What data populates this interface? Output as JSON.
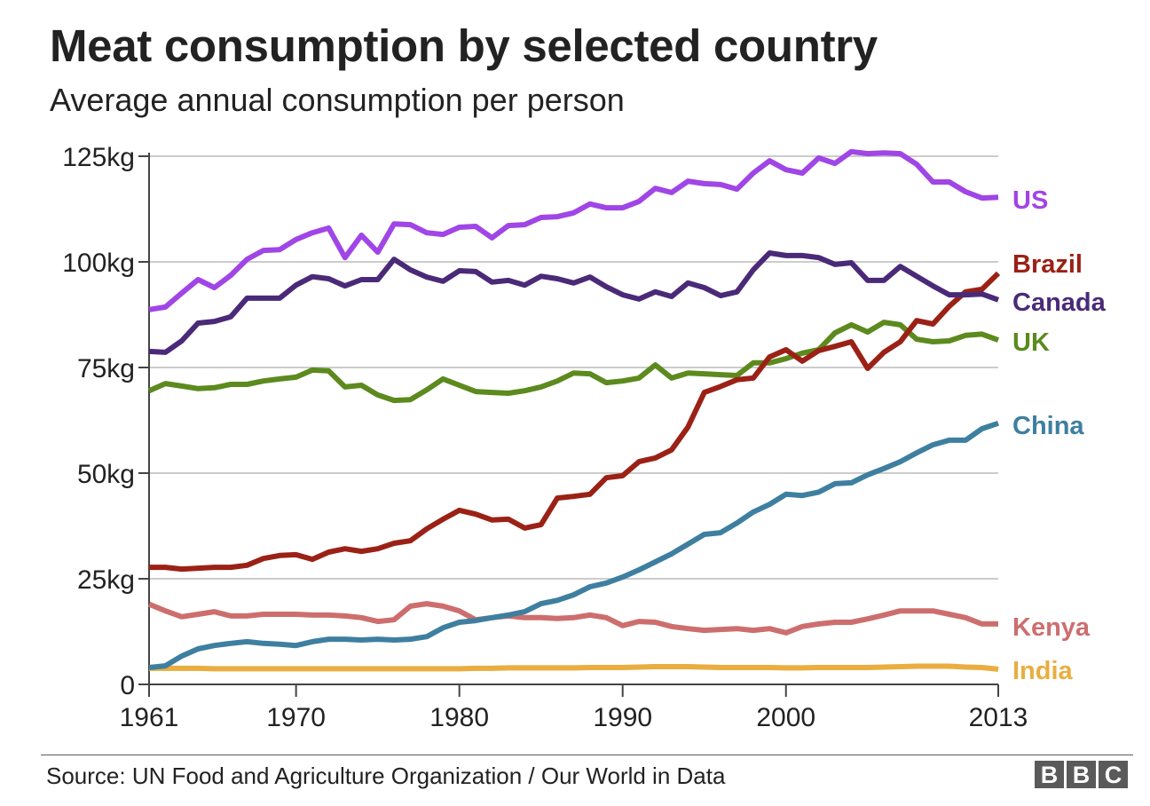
{
  "header": {
    "title": "Meat consumption by selected country",
    "subtitle": "Average annual consumption per person"
  },
  "footer": {
    "source": "Source: UN Food and Agriculture Organization / Our World in Data",
    "logo_letters": [
      "B",
      "B",
      "C"
    ]
  },
  "chart_data": {
    "type": "line",
    "title": "Meat consumption by selected country",
    "subtitle": "Average annual consumption per person",
    "xlabel": "",
    "ylabel": "",
    "xlim": [
      1961,
      2013
    ],
    "ylim": [
      0,
      125
    ],
    "x_ticks": [
      1961,
      1970,
      1980,
      1990,
      2000,
      2013
    ],
    "y_ticks": [
      0,
      25,
      50,
      75,
      100,
      125
    ],
    "y_tick_labels": [
      "0",
      "25kg",
      "50kg",
      "75kg",
      "100kg",
      "125kg"
    ],
    "grid": "horizontal",
    "legend": "direct labels at right end of lines",
    "x": [
      1961,
      1962,
      1963,
      1964,
      1965,
      1966,
      1967,
      1968,
      1969,
      1970,
      1971,
      1972,
      1973,
      1974,
      1975,
      1976,
      1977,
      1978,
      1979,
      1980,
      1981,
      1982,
      1983,
      1984,
      1985,
      1986,
      1987,
      1988,
      1989,
      1990,
      1991,
      1992,
      1993,
      1994,
      1995,
      1996,
      1997,
      1998,
      1999,
      2000,
      2001,
      2002,
      2003,
      2004,
      2005,
      2006,
      2007,
      2008,
      2009,
      2010,
      2011,
      2012,
      2013
    ],
    "series": [
      {
        "name": "US",
        "color": "#a045e6",
        "values": [
          88.7,
          89.3,
          92.6,
          95.8,
          93.9,
          96.8,
          100.6,
          102.7,
          102.9,
          105.3,
          106.9,
          108.0,
          101.0,
          106.3,
          102.3,
          109.0,
          108.8,
          106.9,
          106.5,
          108.2,
          108.4,
          105.7,
          108.6,
          108.8,
          110.5,
          110.7,
          111.6,
          113.7,
          112.8,
          112.8,
          114.3,
          117.4,
          116.4,
          119.1,
          118.5,
          118.3,
          117.2,
          121.0,
          123.9,
          121.8,
          121.0,
          124.6,
          123.3,
          126.1,
          125.6,
          125.8,
          125.6,
          123.1,
          118.9,
          118.9,
          116.6,
          115.1,
          115.3
        ]
      },
      {
        "name": "Brazil",
        "color": "#9b2116",
        "values": [
          27.7,
          27.7,
          27.3,
          27.5,
          27.7,
          27.7,
          28.2,
          29.8,
          30.5,
          30.7,
          29.6,
          31.3,
          32.1,
          31.5,
          32.1,
          33.4,
          34.0,
          36.8,
          39.1,
          41.2,
          40.3,
          38.9,
          39.1,
          37.0,
          37.8,
          44.1,
          44.5,
          45.0,
          48.9,
          49.4,
          52.7,
          53.6,
          55.5,
          60.9,
          69.1,
          70.5,
          72.1,
          72.5,
          77.5,
          79.2,
          76.5,
          79.0,
          80.0,
          81.1,
          74.8,
          78.6,
          81.1,
          86.1,
          85.3,
          89.5,
          92.9,
          93.5,
          97.3
        ]
      },
      {
        "name": "Canada",
        "color": "#4a2a78",
        "values": [
          78.8,
          78.6,
          81.3,
          85.5,
          85.9,
          87.0,
          91.4,
          91.4,
          91.4,
          94.5,
          96.5,
          96.0,
          94.3,
          95.8,
          95.8,
          100.6,
          98.1,
          96.4,
          95.4,
          97.9,
          97.7,
          95.2,
          95.6,
          94.5,
          96.6,
          96.0,
          95.0,
          96.4,
          94.1,
          92.2,
          91.2,
          92.9,
          91.8,
          95.0,
          93.9,
          92.0,
          92.9,
          98.1,
          102.1,
          101.5,
          101.5,
          101.0,
          99.4,
          99.8,
          95.6,
          95.6,
          98.9,
          96.6,
          94.3,
          92.2,
          92.2,
          92.4,
          91.0
        ]
      },
      {
        "name": "UK",
        "color": "#5c8a1e",
        "values": [
          69.5,
          71.2,
          70.6,
          70.0,
          70.2,
          71.0,
          71.0,
          71.8,
          72.3,
          72.7,
          74.4,
          74.2,
          70.4,
          70.8,
          68.5,
          67.2,
          67.4,
          69.7,
          72.3,
          70.8,
          69.3,
          69.1,
          68.9,
          69.5,
          70.4,
          71.8,
          73.7,
          73.5,
          71.4,
          71.8,
          72.5,
          75.6,
          72.5,
          73.7,
          73.5,
          73.3,
          73.1,
          76.1,
          76.1,
          77.1,
          78.4,
          79.2,
          83.2,
          85.1,
          83.4,
          85.7,
          85.1,
          81.7,
          81.1,
          81.3,
          82.6,
          82.9,
          81.5
        ]
      },
      {
        "name": "China",
        "color": "#3e7fa0",
        "values": [
          4.0,
          4.4,
          6.7,
          8.4,
          9.2,
          9.7,
          10.1,
          9.7,
          9.5,
          9.2,
          10.1,
          10.7,
          10.7,
          10.5,
          10.7,
          10.5,
          10.7,
          11.3,
          13.4,
          14.7,
          15.1,
          15.8,
          16.4,
          17.2,
          19.1,
          19.9,
          21.2,
          23.1,
          24.0,
          25.4,
          27.1,
          29.0,
          30.9,
          33.2,
          35.5,
          35.9,
          38.2,
          40.8,
          42.6,
          45.0,
          44.7,
          45.5,
          47.5,
          47.7,
          49.6,
          51.1,
          52.7,
          54.8,
          56.7,
          57.8,
          57.8,
          60.5,
          61.8
        ]
      },
      {
        "name": "Kenya",
        "color": "#cd6e6e",
        "values": [
          19.0,
          17.4,
          16.0,
          16.6,
          17.2,
          16.2,
          16.2,
          16.6,
          16.6,
          16.6,
          16.4,
          16.4,
          16.2,
          15.8,
          14.9,
          15.3,
          18.5,
          19.1,
          18.5,
          17.4,
          15.3,
          15.8,
          16.2,
          15.8,
          15.8,
          15.6,
          15.8,
          16.4,
          15.8,
          13.9,
          14.9,
          14.7,
          13.7,
          13.2,
          12.8,
          13.0,
          13.2,
          12.8,
          13.2,
          12.2,
          13.7,
          14.3,
          14.7,
          14.7,
          15.5,
          16.4,
          17.4,
          17.4,
          17.4,
          16.6,
          15.8,
          14.3,
          14.3
        ]
      },
      {
        "name": "India",
        "color": "#e9ae3f",
        "values": [
          3.8,
          3.8,
          3.8,
          3.8,
          3.7,
          3.7,
          3.7,
          3.7,
          3.7,
          3.7,
          3.7,
          3.7,
          3.7,
          3.7,
          3.7,
          3.7,
          3.7,
          3.7,
          3.7,
          3.7,
          3.8,
          3.8,
          3.9,
          3.9,
          3.9,
          3.9,
          3.9,
          4.0,
          4.0,
          4.0,
          4.1,
          4.2,
          4.2,
          4.2,
          4.1,
          4.0,
          4.0,
          4.0,
          4.0,
          3.9,
          3.9,
          4.0,
          4.0,
          4.0,
          4.0,
          4.1,
          4.2,
          4.3,
          4.3,
          4.3,
          4.1,
          4.0,
          3.6
        ]
      }
    ]
  }
}
